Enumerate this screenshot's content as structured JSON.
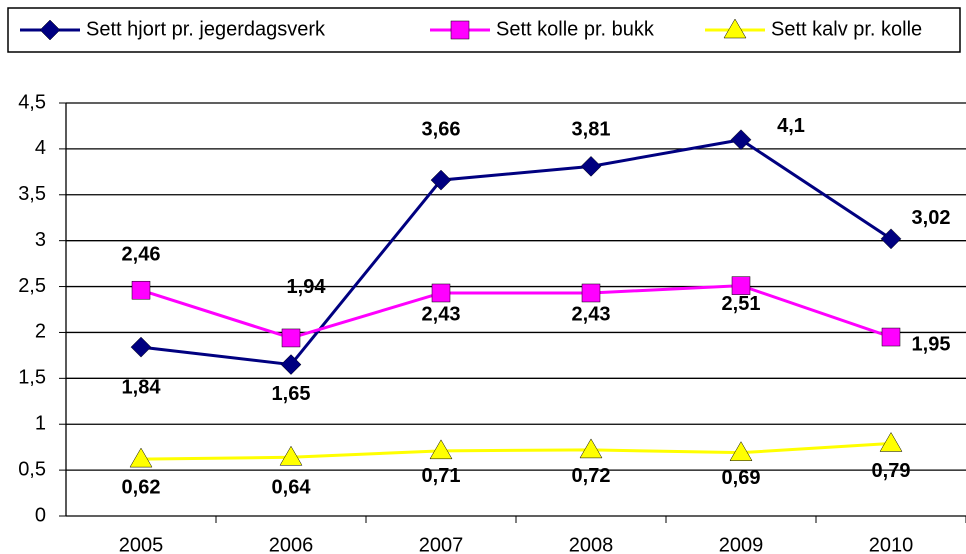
{
  "chart_data": {
    "type": "line",
    "categories": [
      "2005",
      "2006",
      "2007",
      "2008",
      "2009",
      "2010"
    ],
    "ylim": [
      0,
      4.5
    ],
    "yticks": [
      0,
      {
        "value": 0.5,
        "label": "0,5"
      },
      1,
      {
        "value": 1.5,
        "label": "1,5"
      },
      2,
      {
        "value": 2.5,
        "label": "2,5"
      },
      3,
      {
        "value": 3.5,
        "label": "3,5"
      },
      4,
      {
        "value": 4.5,
        "label": "4,5"
      }
    ],
    "grid": true,
    "legend": "top",
    "series": [
      {
        "name": "Sett hjort pr. jegerdagsverk",
        "color": "#000080",
        "marker": "diamond",
        "values": [
          1.84,
          1.65,
          3.66,
          3.81,
          4.1,
          3.02
        ],
        "value_labels": [
          "1,84",
          "1,65",
          "3,66",
          "3,81",
          "4,1",
          "3,02"
        ]
      },
      {
        "name": "Sett kolle pr. bukk",
        "color": "#ff00ff",
        "marker": "square",
        "values": [
          2.46,
          1.94,
          2.43,
          2.43,
          2.51,
          1.95
        ],
        "value_labels": [
          "2,46",
          "1,94",
          "2,43",
          "2,43",
          "2,51",
          "1,95"
        ]
      },
      {
        "name": "Sett kalv pr. kolle",
        "color": "#ffff00",
        "marker": "triangle",
        "values": [
          0.62,
          0.64,
          0.71,
          0.72,
          0.69,
          0.79
        ],
        "value_labels": [
          "0,62",
          "0,64",
          "0,71",
          "0,72",
          "0,69",
          "0,79"
        ]
      }
    ]
  }
}
